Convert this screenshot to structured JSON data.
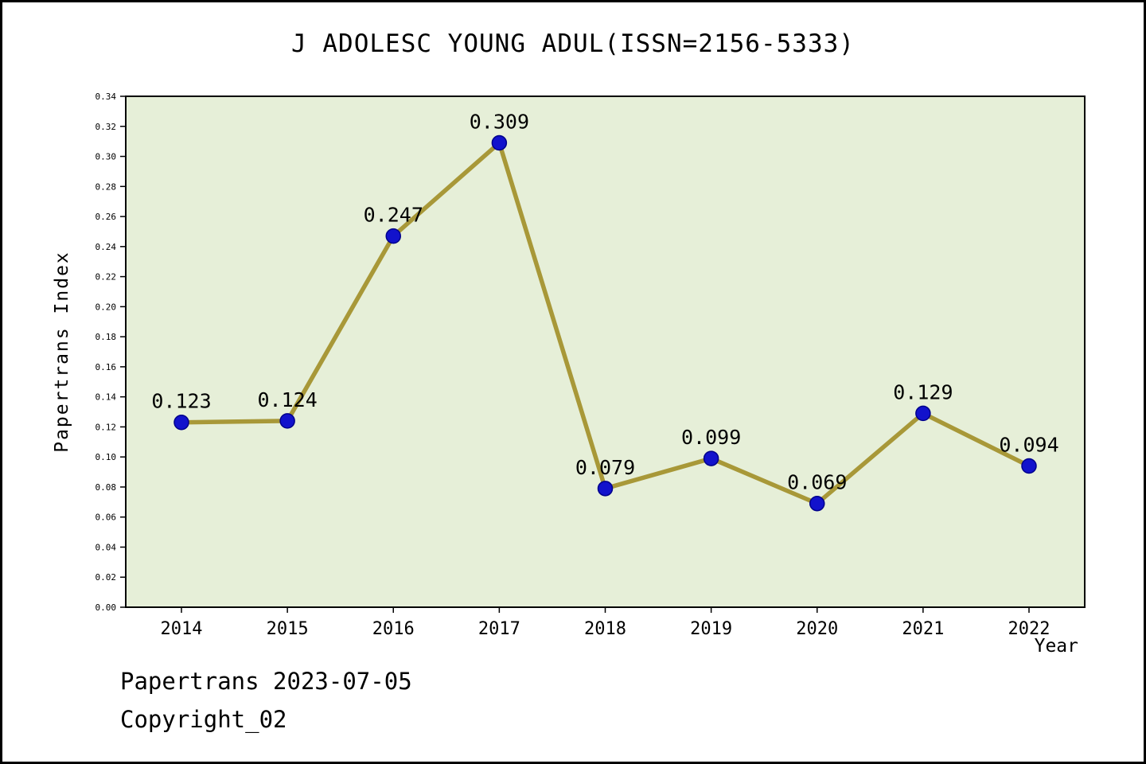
{
  "title": "J ADOLESC YOUNG ADUL(ISSN=2156-5333)",
  "footer": {
    "line1": "Papertrans 2023-07-05",
    "line2": "Copyright_02"
  },
  "chart_data": {
    "type": "line",
    "title": "J ADOLESC YOUNG ADUL(ISSN=2156-5333)",
    "xlabel": "Year",
    "ylabel": "Papertrans Index",
    "x": [
      2014,
      2015,
      2016,
      2017,
      2018,
      2019,
      2020,
      2021,
      2022
    ],
    "values": [
      0.123,
      0.124,
      0.247,
      0.309,
      0.079,
      0.099,
      0.069,
      0.129,
      0.094
    ],
    "point_labels": [
      "0.123",
      "0.124",
      "0.247",
      "0.309",
      "0.079",
      "0.099",
      "0.069",
      "0.129",
      "0.094"
    ],
    "ylim": [
      0,
      0.34
    ],
    "ytick_step": 0.02,
    "grid": false,
    "legend_position": "none",
    "colors": {
      "line": "#a89838",
      "marker_fill": "#1212cc",
      "marker_edge": "#00008b",
      "plot_bg": "#e6efd8",
      "axis": "#000000",
      "text": "#000000"
    }
  }
}
